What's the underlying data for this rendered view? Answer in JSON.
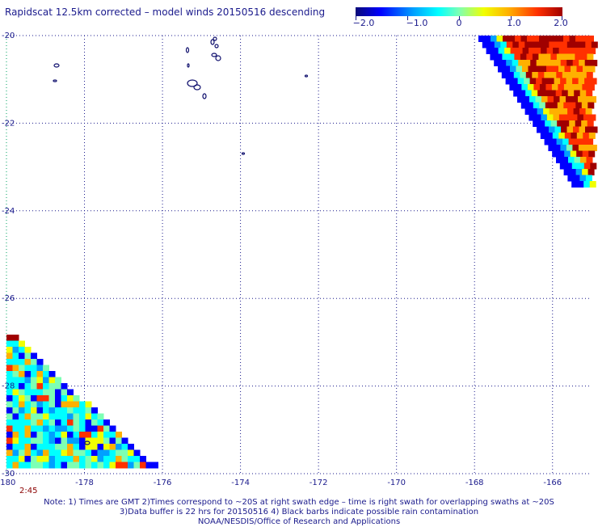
{
  "title": "Rapidscat 12.5km corrected – model winds 20150516 descending",
  "colorbar": {
    "labels": [
      "−2.0",
      "−1.0",
      "0",
      "1.0",
      "2.0"
    ],
    "values": [
      -2.0,
      -1.0,
      0,
      1.0,
      2.0
    ],
    "min": -2.0,
    "max": 2.0,
    "colors": [
      "#0a0a78",
      "#0000ff",
      "#00a0ff",
      "#00ffff",
      "#7dffb4",
      "#f0ff00",
      "#ffb000",
      "#ff3000",
      "#a00000"
    ]
  },
  "map": {
    "lon_range": [
      -180,
      -165
    ],
    "lat_range": [
      -20,
      -30
    ],
    "x_ticks": [
      {
        "value": -180,
        "label": "-180"
      },
      {
        "value": -178,
        "label": "-178"
      },
      {
        "value": -176,
        "label": "-176"
      },
      {
        "value": -174,
        "label": "-174"
      },
      {
        "value": -172,
        "label": "-172"
      },
      {
        "value": -170,
        "label": "-170"
      },
      {
        "value": -168,
        "label": "-168"
      },
      {
        "value": -166,
        "label": "-166"
      }
    ],
    "y_ticks": [
      {
        "value": -20,
        "label": "-20"
      },
      {
        "value": -22,
        "label": "-22"
      },
      {
        "value": -24,
        "label": "-24"
      },
      {
        "value": -26,
        "label": "-26"
      },
      {
        "value": -28,
        "label": "-28"
      },
      {
        "value": -30,
        "label": "-30"
      }
    ],
    "grid": "dotted",
    "dateline_color": "#00a060"
  },
  "swath_time": "2:45",
  "notes": [
    "Note: 1) Times are GMT 2)Times correspond to ~20S at right swath edge – time is right swath for overlapping swaths at ~20S",
    "3)Data buffer is 22 hrs for 20150516 4) Black barbs indicate possible rain contamination",
    "NOAA/NESDIS/Office of Research and Applications"
  ]
}
